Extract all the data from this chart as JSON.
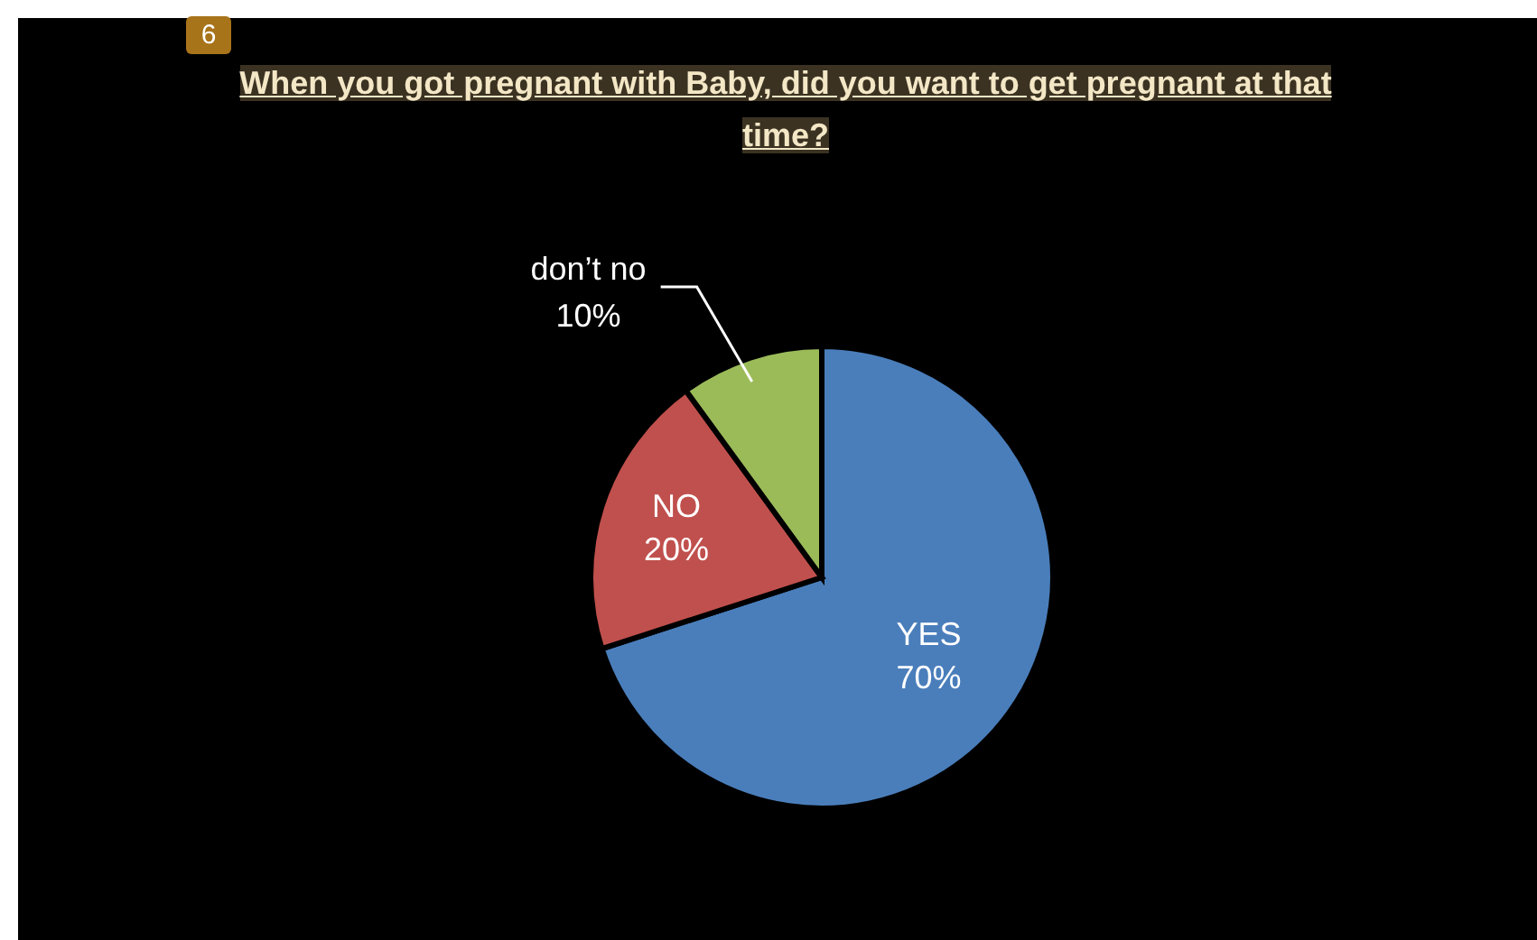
{
  "chart_data": {
    "type": "pie",
    "title": "When you got pregnant with Baby, did you want to get pregnant at that time?",
    "categories": [
      "YES",
      "NO",
      "don’t no"
    ],
    "values": [
      70,
      20,
      10
    ],
    "value_labels": [
      "70%",
      "20%",
      "10%"
    ],
    "colors": [
      "#4a7ebb",
      "#c0504d",
      "#9bbb59"
    ],
    "legend": false,
    "annotations": [
      "6"
    ]
  }
}
